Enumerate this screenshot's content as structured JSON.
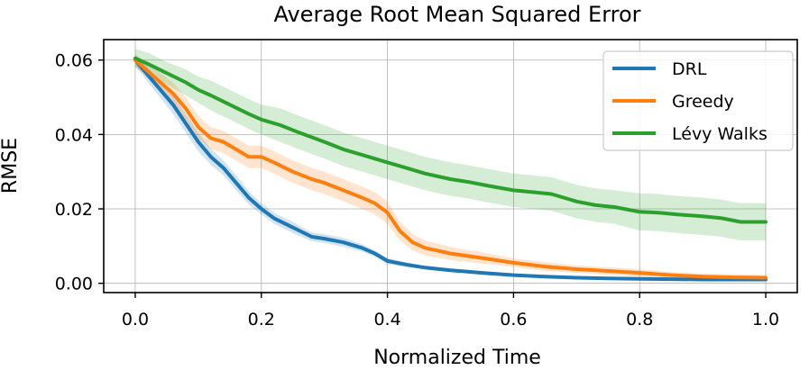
{
  "chart_data": {
    "type": "line",
    "title": "Average Root Mean Squared Error",
    "xlabel": "Normalized Time",
    "ylabel": "RMSE",
    "xlim": [
      -0.05,
      1.05
    ],
    "ylim": [
      -0.0025,
      0.0655
    ],
    "xticks": [
      0.0,
      0.2,
      0.4,
      0.6,
      0.8,
      1.0
    ],
    "xtick_labels": [
      "0.0",
      "0.2",
      "0.4",
      "0.6",
      "0.8",
      "1.0"
    ],
    "yticks": [
      0.0,
      0.02,
      0.04,
      0.06
    ],
    "ytick_labels": [
      "0.00",
      "0.02",
      "0.04",
      "0.06"
    ],
    "grid": true,
    "legend_position": "top-right",
    "series": [
      {
        "name": "DRL",
        "color": "#1f77b4",
        "x": [
          0.0,
          0.02,
          0.04,
          0.06,
          0.08,
          0.1,
          0.12,
          0.14,
          0.16,
          0.18,
          0.2,
          0.22,
          0.25,
          0.28,
          0.3,
          0.33,
          0.36,
          0.38,
          0.4,
          0.43,
          0.46,
          0.5,
          0.55,
          0.6,
          0.65,
          0.7,
          0.75,
          0.8,
          0.85,
          0.9,
          0.95,
          1.0
        ],
        "y": [
          0.06,
          0.056,
          0.052,
          0.048,
          0.043,
          0.038,
          0.034,
          0.031,
          0.027,
          0.023,
          0.02,
          0.0175,
          0.015,
          0.0125,
          0.012,
          0.011,
          0.0095,
          0.008,
          0.006,
          0.005,
          0.0042,
          0.0035,
          0.0028,
          0.0022,
          0.0018,
          0.0015,
          0.0013,
          0.0012,
          0.0011,
          0.001,
          0.001,
          0.001
        ],
        "band": [
          0.0015,
          0.002,
          0.0022,
          0.0025,
          0.0025,
          0.0025,
          0.0022,
          0.002,
          0.002,
          0.0018,
          0.0015,
          0.0015,
          0.0015,
          0.0012,
          0.0012,
          0.0012,
          0.001,
          0.0008,
          0.0008,
          0.0006,
          0.0005,
          0.0005,
          0.0004,
          0.0003,
          0.0003,
          0.0002,
          0.0002,
          0.0002,
          0.0002,
          0.0002,
          0.0002,
          0.0002
        ]
      },
      {
        "name": "Greedy",
        "color": "#ff7f0e",
        "x": [
          0.0,
          0.02,
          0.04,
          0.06,
          0.08,
          0.1,
          0.12,
          0.14,
          0.16,
          0.18,
          0.2,
          0.22,
          0.25,
          0.28,
          0.3,
          0.33,
          0.36,
          0.38,
          0.4,
          0.42,
          0.44,
          0.46,
          0.5,
          0.55,
          0.6,
          0.65,
          0.7,
          0.75,
          0.8,
          0.85,
          0.9,
          0.95,
          1.0
        ],
        "y": [
          0.06,
          0.057,
          0.054,
          0.051,
          0.047,
          0.042,
          0.039,
          0.038,
          0.036,
          0.034,
          0.034,
          0.0325,
          0.03,
          0.028,
          0.027,
          0.025,
          0.023,
          0.0215,
          0.019,
          0.014,
          0.011,
          0.0095,
          0.008,
          0.0068,
          0.0055,
          0.0045,
          0.0038,
          0.0033,
          0.0028,
          0.0022,
          0.0018,
          0.0016,
          0.0015
        ],
        "band": [
          0.0015,
          0.002,
          0.0025,
          0.003,
          0.003,
          0.003,
          0.003,
          0.003,
          0.003,
          0.003,
          0.003,
          0.003,
          0.003,
          0.003,
          0.003,
          0.003,
          0.003,
          0.003,
          0.003,
          0.0025,
          0.0022,
          0.002,
          0.0018,
          0.0015,
          0.0012,
          0.0012,
          0.001,
          0.001,
          0.001,
          0.0008,
          0.0008,
          0.0008,
          0.0008
        ]
      },
      {
        "name": "Lévy Walks",
        "color": "#2ca02c",
        "x": [
          0.0,
          0.02,
          0.05,
          0.08,
          0.1,
          0.12,
          0.15,
          0.18,
          0.2,
          0.23,
          0.26,
          0.3,
          0.33,
          0.36,
          0.4,
          0.43,
          0.46,
          0.5,
          0.53,
          0.56,
          0.6,
          0.63,
          0.66,
          0.7,
          0.73,
          0.76,
          0.8,
          0.83,
          0.86,
          0.9,
          0.93,
          0.96,
          1.0
        ],
        "y": [
          0.0605,
          0.059,
          0.0565,
          0.054,
          0.052,
          0.0505,
          0.048,
          0.0455,
          0.044,
          0.0425,
          0.0405,
          0.038,
          0.036,
          0.0345,
          0.0325,
          0.031,
          0.0295,
          0.028,
          0.0272,
          0.0262,
          0.025,
          0.0245,
          0.024,
          0.022,
          0.021,
          0.0205,
          0.0192,
          0.019,
          0.0185,
          0.018,
          0.0175,
          0.0165,
          0.0165
        ],
        "band": [
          0.0025,
          0.003,
          0.003,
          0.0035,
          0.0035,
          0.004,
          0.004,
          0.004,
          0.004,
          0.0045,
          0.0045,
          0.0045,
          0.0045,
          0.0045,
          0.0045,
          0.0045,
          0.0045,
          0.0045,
          0.0045,
          0.0045,
          0.0045,
          0.0045,
          0.0045,
          0.0045,
          0.0045,
          0.0045,
          0.005,
          0.005,
          0.005,
          0.005,
          0.005,
          0.005,
          0.005
        ]
      }
    ]
  }
}
